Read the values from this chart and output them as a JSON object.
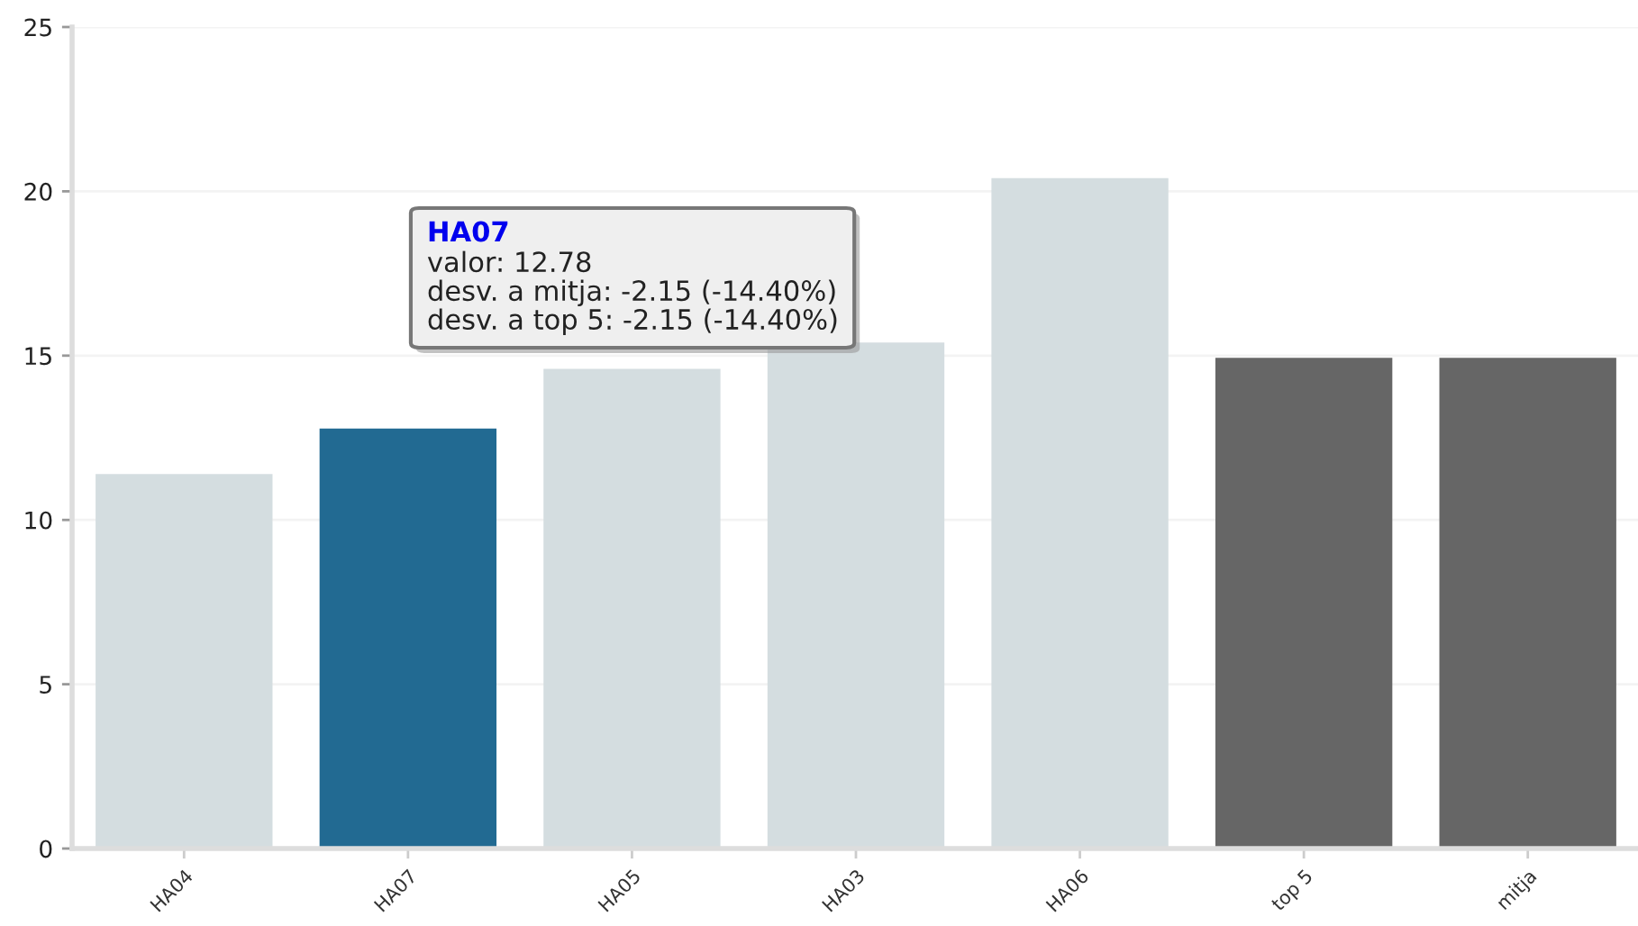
{
  "chart_data": {
    "type": "bar",
    "categories": [
      "HA04",
      "HA07",
      "HA05",
      "HA03",
      "HA06",
      "top 5",
      "mitja"
    ],
    "values": [
      11.4,
      12.78,
      14.6,
      15.4,
      20.4,
      14.93,
      14.93
    ],
    "colors": [
      "#d4dde0",
      "#226a92",
      "#d4dde0",
      "#d4dde0",
      "#d4dde0",
      "#666666",
      "#666666"
    ],
    "ylim": [
      0,
      25
    ],
    "yticks": [
      0,
      5,
      10,
      15,
      20,
      25
    ],
    "grid": "y",
    "annotations": [
      "HA07",
      "valor: 12.78\ndesv. a mitja: -2.15 (-14.40%)\ndesv. a top 5: -2.15 (-14.40%)"
    ]
  }
}
